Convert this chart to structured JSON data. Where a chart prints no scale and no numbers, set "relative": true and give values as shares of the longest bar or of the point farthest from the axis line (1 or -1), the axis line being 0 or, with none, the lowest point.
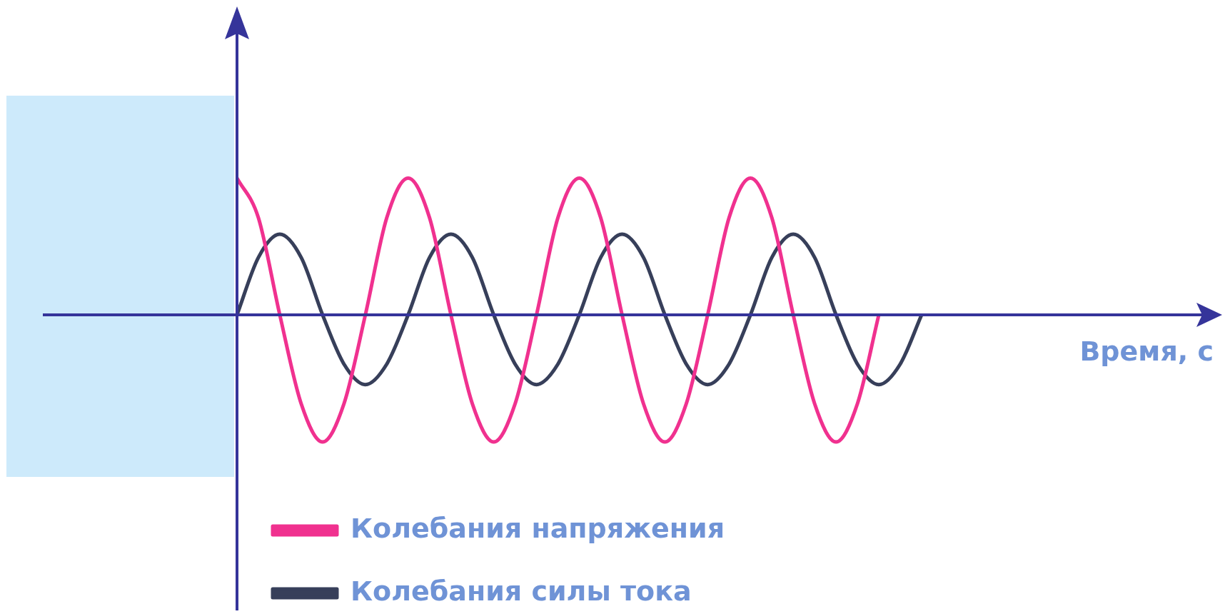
{
  "chart_data": {
    "type": "line",
    "relative": true,
    "ref_lines": [
      {
        "axis": "y",
        "value": 0,
        "color": "#35349a"
      }
    ],
    "annotations": [
      "Время, с"
    ],
    "legend": "bottom",
    "marker": "none",
    "line_style": "solid",
    "categories": [
      null,
      null,
      null,
      null,
      null,
      null,
      null,
      null,
      null,
      null,
      null,
      null,
      null,
      null,
      null,
      null,
      null,
      null,
      null,
      null,
      null,
      null,
      null,
      null,
      null,
      null,
      null,
      null,
      null,
      null,
      null,
      null,
      null
    ],
    "series": [
      {
        "name": "Колебания напряжения",
        "color": "#f0318f",
        "values": [
          1,
          0.71,
          0,
          -0.65,
          -0.93,
          -0.65,
          0,
          0.71,
          1,
          0.71,
          0,
          -0.65,
          -0.93,
          -0.65,
          0,
          0.71,
          1,
          0.71,
          0,
          -0.65,
          -0.93,
          -0.65,
          0,
          0.71,
          1,
          0.71,
          0,
          -0.65,
          -0.93,
          -0.65,
          0,
          null,
          null
        ]
      },
      {
        "name": "Колебания силы тока",
        "color": "#373f5a",
        "values": [
          0,
          0.42,
          0.59,
          0.42,
          0,
          -0.36,
          -0.51,
          -0.36,
          0,
          0.42,
          0.59,
          0.42,
          0,
          -0.36,
          -0.51,
          -0.36,
          0,
          0.42,
          0.59,
          0.42,
          0,
          -0.36,
          -0.51,
          -0.36,
          0,
          0.42,
          0.59,
          0.42,
          0,
          -0.36,
          -0.51,
          -0.36,
          0
        ]
      }
    ]
  }
}
